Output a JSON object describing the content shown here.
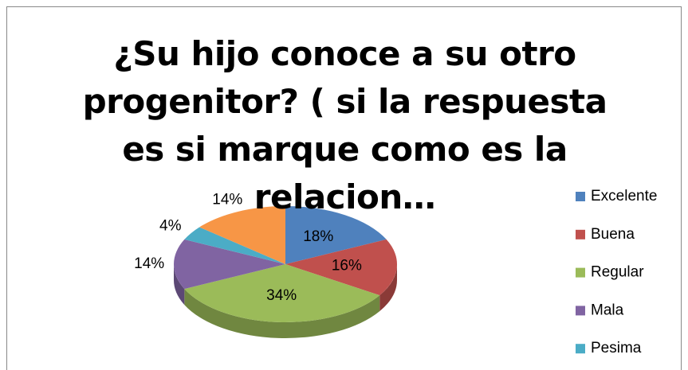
{
  "chart_data": {
    "type": "pie",
    "title": "¿Su hijo conoce a su otro progenitor? ( si la respuesta es si marque como es la relacion…",
    "categories": [
      "Excelente",
      "Buena",
      "Regular",
      "Mala",
      "Pesima",
      null
    ],
    "values": [
      18,
      16,
      34,
      14,
      4,
      14
    ],
    "value_labels": [
      "18%",
      "16%",
      "34%",
      "14%",
      "4%",
      "14%"
    ],
    "colors": [
      "#4f81bd",
      "#c0504d",
      "#9bbb59",
      "#8064a2",
      "#4bacc6",
      "#f79646"
    ],
    "legend": "right",
    "three_d": true
  }
}
